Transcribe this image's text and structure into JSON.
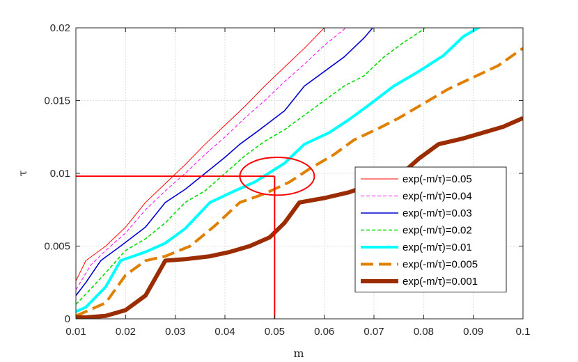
{
  "chart_data": {
    "type": "line",
    "xlabel": "m",
    "ylabel": "τ",
    "xlim": [
      0.01,
      0.1
    ],
    "ylim": [
      0,
      0.02
    ],
    "xticks": [
      "0.01",
      "0.02",
      "0.03",
      "0.04",
      "0.05",
      "0.06",
      "0.07",
      "0.08",
      "0.09",
      "0.1"
    ],
    "yticks": [
      "0",
      "0.005",
      "0.01",
      "0.015",
      "0.02"
    ],
    "grid": true,
    "legend_position": "lower-right",
    "series": [
      {
        "name": "exp(-m/τ)=0.05",
        "color": "#ff0000",
        "style": "solid",
        "weight": "thin",
        "x": [
          0.01,
          0.012,
          0.016,
          0.02,
          0.024,
          0.028,
          0.032,
          0.036,
          0.04,
          0.044,
          0.048,
          0.052,
          0.056,
          0.06,
          0.064
        ],
        "y": [
          0.0026,
          0.004,
          0.005,
          0.0063,
          0.008,
          0.0093,
          0.0106,
          0.012,
          0.0133,
          0.0146,
          0.016,
          0.0173,
          0.0186,
          0.02,
          0.021
        ]
      },
      {
        "name": "exp(-m/τ)=0.04",
        "color": "#ff00ff",
        "style": "dashed",
        "weight": "thin",
        "x": [
          0.01,
          0.013,
          0.016,
          0.02,
          0.024,
          0.028,
          0.032,
          0.036,
          0.04,
          0.044,
          0.048,
          0.052,
          0.056,
          0.06,
          0.064,
          0.067
        ],
        "y": [
          0.002,
          0.0037,
          0.0047,
          0.0059,
          0.0075,
          0.0088,
          0.01,
          0.0113,
          0.0125,
          0.0138,
          0.015,
          0.0163,
          0.0175,
          0.0188,
          0.0199,
          0.021
        ]
      },
      {
        "name": "exp(-m/τ)=0.03",
        "color": "#0000d0",
        "style": "solid",
        "weight": "medium",
        "x": [
          0.01,
          0.012,
          0.015,
          0.019,
          0.024,
          0.028,
          0.032,
          0.036,
          0.04,
          0.043,
          0.047,
          0.052,
          0.056,
          0.06,
          0.064,
          0.068,
          0.071
        ],
        "y": [
          0.0016,
          0.0025,
          0.004,
          0.005,
          0.0063,
          0.008,
          0.0089,
          0.01,
          0.0111,
          0.012,
          0.013,
          0.0143,
          0.016,
          0.017,
          0.018,
          0.0193,
          0.0205
        ]
      },
      {
        "name": "exp(-m/τ)=0.02",
        "color": "#00dd00",
        "style": "dashed",
        "weight": "medium",
        "x": [
          0.01,
          0.012,
          0.015,
          0.02,
          0.024,
          0.028,
          0.032,
          0.036,
          0.04,
          0.044,
          0.048,
          0.052,
          0.056,
          0.06,
          0.064,
          0.068,
          0.072,
          0.076,
          0.08,
          0.081
        ],
        "y": [
          0.001,
          0.0017,
          0.0028,
          0.0047,
          0.0055,
          0.0066,
          0.008,
          0.0088,
          0.01,
          0.0112,
          0.0122,
          0.013,
          0.014,
          0.015,
          0.016,
          0.0167,
          0.018,
          0.019,
          0.0199,
          0.0205
        ]
      },
      {
        "name": "exp(-m/τ)=0.01",
        "color": "#00ffff",
        "style": "solid",
        "weight": "thick",
        "x": [
          0.01,
          0.012,
          0.016,
          0.019,
          0.024,
          0.028,
          0.032,
          0.037,
          0.042,
          0.046,
          0.052,
          0.056,
          0.061,
          0.065,
          0.069,
          0.074,
          0.079,
          0.084,
          0.088,
          0.092
        ],
        "y": [
          0.0005,
          0.0008,
          0.0022,
          0.004,
          0.0046,
          0.0052,
          0.0062,
          0.008,
          0.0088,
          0.0094,
          0.0107,
          0.012,
          0.0128,
          0.0137,
          0.0147,
          0.016,
          0.017,
          0.0181,
          0.0194,
          0.0202
        ]
      },
      {
        "name": "exp(-m/τ)=0.005",
        "color": "#e08000",
        "style": "dashed",
        "weight": "thick",
        "x": [
          0.01,
          0.012,
          0.016,
          0.02,
          0.024,
          0.028,
          0.033,
          0.038,
          0.043,
          0.048,
          0.053,
          0.057,
          0.062,
          0.066,
          0.071,
          0.075,
          0.08,
          0.085,
          0.09,
          0.095,
          0.1
        ],
        "y": [
          0.0002,
          0.0005,
          0.0011,
          0.003,
          0.004,
          0.0043,
          0.005,
          0.0064,
          0.008,
          0.0086,
          0.0094,
          0.0103,
          0.0113,
          0.0123,
          0.0131,
          0.0138,
          0.0148,
          0.0158,
          0.0166,
          0.0174,
          0.0186
        ]
      },
      {
        "name": "exp(-m/τ)=0.001",
        "color": "#9a2c00",
        "style": "solid",
        "weight": "heavy",
        "x": [
          0.01,
          0.012,
          0.016,
          0.02,
          0.024,
          0.028,
          0.032,
          0.037,
          0.041,
          0.045,
          0.049,
          0.052,
          0.055,
          0.06,
          0.065,
          0.07,
          0.075,
          0.079,
          0.083,
          0.088,
          0.092,
          0.096,
          0.1
        ],
        "y": [
          0.0001,
          0.0001,
          0.0002,
          0.0006,
          0.0016,
          0.004,
          0.0041,
          0.0043,
          0.0046,
          0.005,
          0.0056,
          0.0066,
          0.008,
          0.0083,
          0.0087,
          0.0093,
          0.0098,
          0.011,
          0.012,
          0.0124,
          0.0128,
          0.0132,
          0.0138
        ]
      }
    ],
    "annotations": {
      "highlight_x": 0.05,
      "highlight_y": 0.0098,
      "ellipse_center": [
        0.0505,
        0.0098
      ],
      "ellipse_radius": [
        0.0075,
        0.0013
      ],
      "color": "#ff0000"
    }
  }
}
